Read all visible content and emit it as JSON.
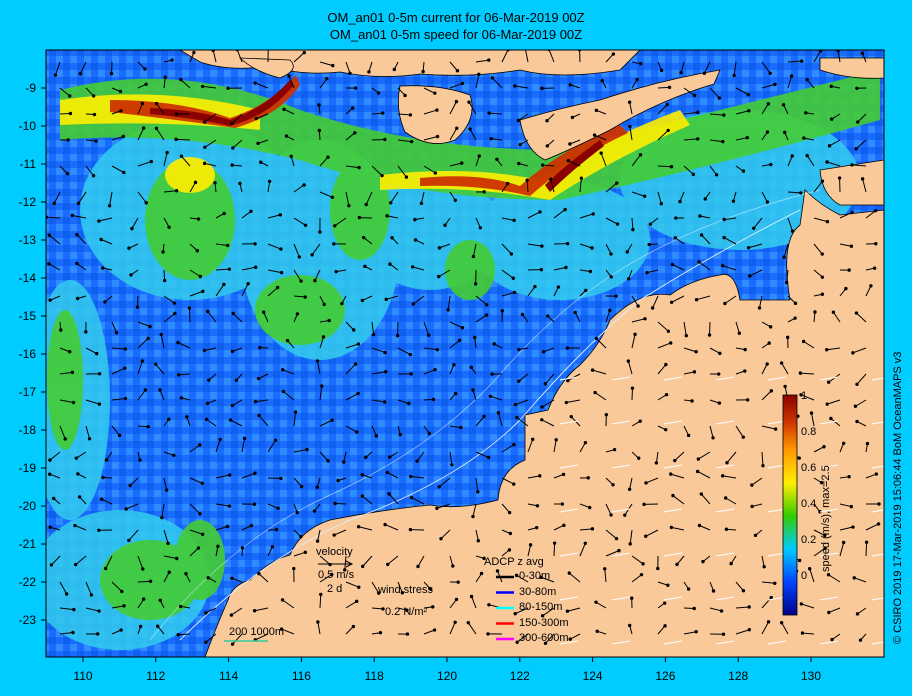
{
  "title_line1": "OM_an01 0-5m current for 06-Mar-2019 00Z",
  "title_line2": "OM_an01 0-5m speed for 06-Mar-2019 00Z",
  "copyright": "© CSIRO 2019   17-Mar-2019 15:06:44 BoM OceanMAPS v3",
  "x_ticks": [
    "110",
    "112",
    "114",
    "116",
    "118",
    "120",
    "122",
    "124",
    "126",
    "128",
    "130"
  ],
  "y_ticks": [
    "-9",
    "-10",
    "-11",
    "-12",
    "-13",
    "-14",
    "-15",
    "-16",
    "-17",
    "-18",
    "-19",
    "-20",
    "-21",
    "-22",
    "-23"
  ],
  "colorbar": {
    "label": "speed (m/s),  max=2.5",
    "ticks": [
      "1",
      "0.8",
      "0.6",
      "0.4",
      "0.2",
      "0"
    ],
    "colors": [
      "#8b0000",
      "#cc3300",
      "#ff9900",
      "#ffee00",
      "#33cc00",
      "#00ccff",
      "#0055ff",
      "#000088"
    ]
  },
  "legend": {
    "velocity_label": "velocity",
    "velocity_speed": "0.5 m/s",
    "velocity_time": "2 d",
    "wind_label": "wind stress",
    "wind_value": "0.2 N/m²",
    "scale_label": "200  1000m",
    "adcp_title": "ADCP z avg",
    "adcp_items": [
      {
        "label": "0-30m",
        "color": "#000000"
      },
      {
        "label": "30-80m",
        "color": "#0000ff"
      },
      {
        "label": "80-150m",
        "color": "#00ffff"
      },
      {
        "label": "150-300m",
        "color": "#ff0000"
      },
      {
        "label": "300-600m",
        "color": "#ff00ff"
      }
    ]
  },
  "colors": {
    "land": "#f9c99a",
    "ocean_slow": "#1a6bff",
    "ocean_mid": "#33ccee",
    "ocean_fast": "#44cc33",
    "jet": "#cc2200",
    "frame": "#00ccff"
  }
}
